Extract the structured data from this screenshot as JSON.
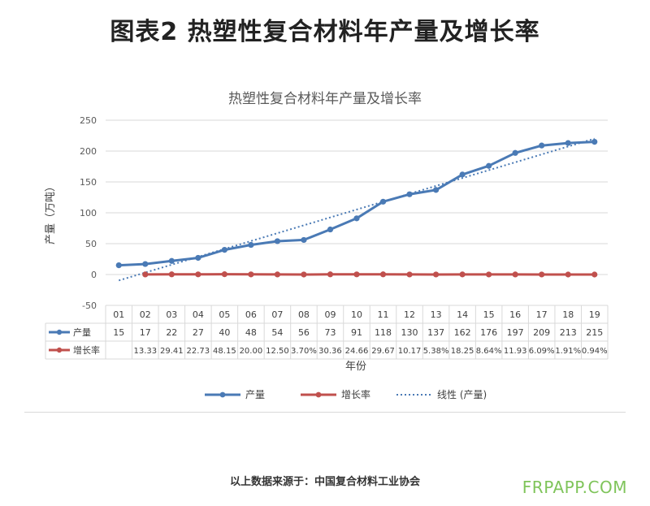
{
  "page": {
    "title": "图表2 热塑性复合材料年产量及增长率",
    "source": "以上数据来源于：中国复合材料工业协会",
    "watermark": "FRPAPP.COM"
  },
  "chart_data": {
    "type": "line",
    "title": "热塑性复合材料年产量及增长率",
    "xlabel": "年份",
    "ylabel": "产量（万吨）",
    "ylim": [
      -50,
      250
    ],
    "yticks": [
      -50,
      0,
      50,
      100,
      150,
      200,
      250
    ],
    "grid": true,
    "legend_position": "bottom",
    "categories": [
      "01",
      "02",
      "03",
      "04",
      "05",
      "06",
      "07",
      "08",
      "09",
      "10",
      "11",
      "12",
      "13",
      "14",
      "15",
      "16",
      "17",
      "18",
      "19"
    ],
    "series": [
      {
        "name": "产量",
        "color": "#4a7ab5",
        "values": [
          15,
          17,
          22,
          27,
          40,
          48,
          54,
          56,
          73,
          91,
          118,
          130,
          137,
          162,
          176,
          197,
          209,
          213,
          215
        ],
        "labels": [
          "15",
          "17",
          "22",
          "27",
          "40",
          "48",
          "54",
          "56",
          "73",
          "91",
          "118",
          "130",
          "137",
          "162",
          "176",
          "197",
          "209",
          "213",
          "215"
        ]
      },
      {
        "name": "增长率",
        "color": "#c0504d",
        "values": [
          null,
          13.33,
          29.41,
          22.73,
          48.15,
          20.0,
          12.5,
          3.7,
          30.36,
          24.66,
          29.67,
          10.17,
          5.38,
          18.25,
          8.64,
          11.93,
          6.09,
          1.91,
          0.94
        ],
        "plot_values": [
          null,
          0.1333,
          0.2941,
          0.2273,
          0.4815,
          0.2,
          0.125,
          0.037,
          0.3036,
          0.2466,
          0.2967,
          0.1017,
          0.0538,
          0.1825,
          0.0864,
          0.1193,
          0.0609,
          0.0191,
          0.0094
        ],
        "labels": [
          "",
          "13.33",
          "29.41",
          "22.73",
          "48.15",
          "20.00",
          "12.50",
          "3.70%",
          "30.36",
          "24.66",
          "29.67",
          "10.17",
          "5.38%",
          "18.25",
          "8.64%",
          "11.93",
          "6.09%",
          "1.91%",
          "0.94%"
        ]
      }
    ],
    "trendline": {
      "name": "线性 (产量)",
      "color": "#4a7ab5",
      "type": "linear",
      "of_series": "产量"
    }
  }
}
